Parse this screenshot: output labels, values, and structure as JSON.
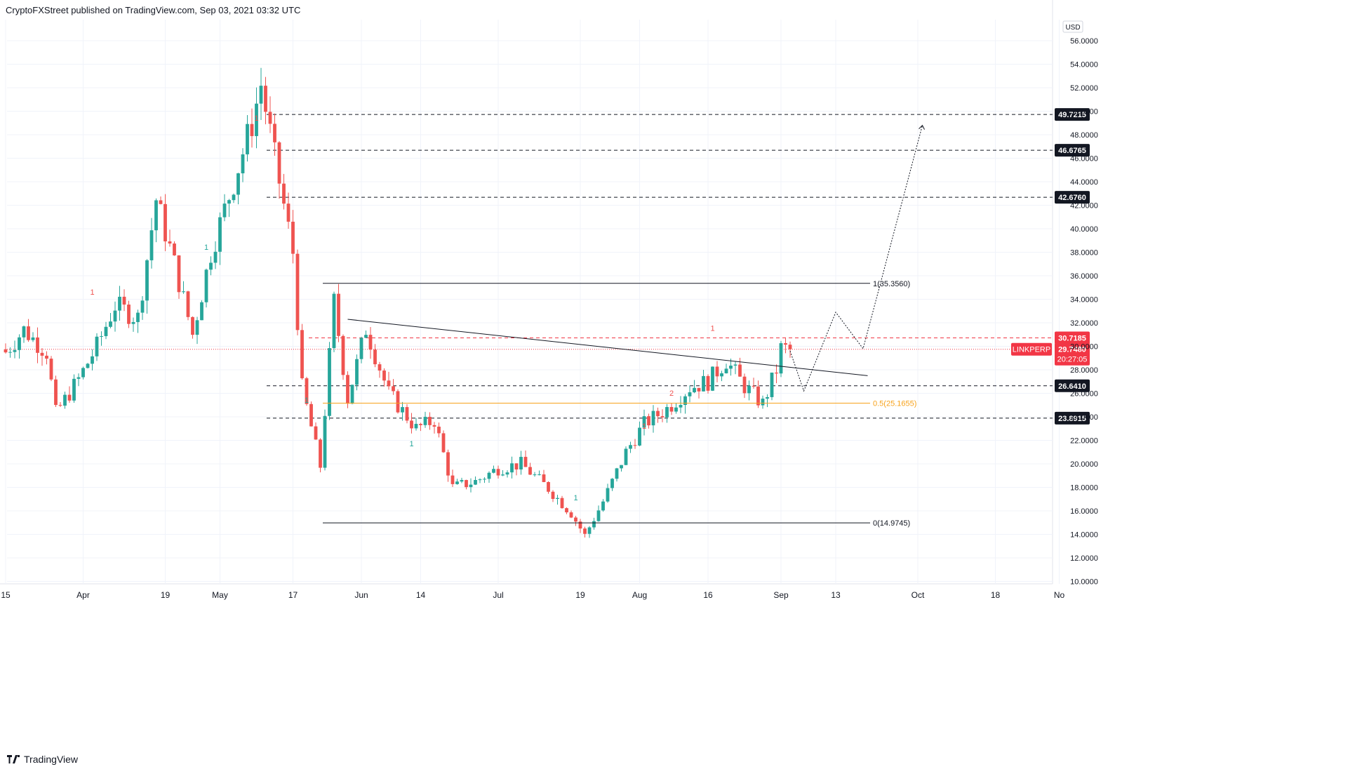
{
  "header": {
    "publisher_line": "CryptoFXStreet published on TradingView.com, Sep 03, 2021 03:32 UTC"
  },
  "footer": {
    "brand": "TradingView"
  },
  "colors": {
    "up": "#26a69a",
    "down": "#ef5350",
    "fib_mid": "#f7a21b",
    "last_price_bg": "#f23645",
    "dark_label_bg": "#131722",
    "grid": "#f0f3fa"
  },
  "chart_data": {
    "type": "candlestick",
    "symbol": "LINKPERP",
    "currency": "USD",
    "y_ticks": [
      "56.0000",
      "54.0000",
      "52.0000",
      "50.0000",
      "48.0000",
      "46.0000",
      "44.0000",
      "42.0000",
      "40.0000",
      "38.0000",
      "36.0000",
      "34.0000",
      "32.0000",
      "30.0000",
      "28.0000",
      "26.0000",
      "24.0000",
      "22.0000",
      "20.0000",
      "18.0000",
      "16.0000",
      "14.0000",
      "12.0000",
      "10.0000"
    ],
    "y_tick_values": [
      56,
      54,
      52,
      50,
      48,
      46,
      44,
      42,
      40,
      38,
      36,
      34,
      32,
      30,
      28,
      26,
      24,
      22,
      20,
      18,
      16,
      14,
      12,
      10
    ],
    "x_ticks": [
      {
        "label": "15",
        "date": "2021-03-15"
      },
      {
        "label": "Apr",
        "date": "2021-04-01"
      },
      {
        "label": "19",
        "date": "2021-04-19"
      },
      {
        "label": "May",
        "date": "2021-05-01"
      },
      {
        "label": "17",
        "date": "2021-05-17"
      },
      {
        "label": "Jun",
        "date": "2021-06-01"
      },
      {
        "label": "14",
        "date": "2021-06-14"
      },
      {
        "label": "Jul",
        "date": "2021-07-01"
      },
      {
        "label": "19",
        "date": "2021-07-19"
      },
      {
        "label": "Aug",
        "date": "2021-08-01"
      },
      {
        "label": "16",
        "date": "2021-08-16"
      },
      {
        "label": "Sep",
        "date": "2021-09-01"
      },
      {
        "label": "13",
        "date": "2021-09-13"
      },
      {
        "label": "Oct",
        "date": "2021-10-01"
      },
      {
        "label": "18",
        "date": "2021-10-18"
      },
      {
        "label": "No",
        "date": "2021-11-01"
      }
    ],
    "closes": [
      {
        "date": "2021-03-15",
        "value": 29.5
      },
      {
        "date": "2021-03-19",
        "value": 31.4
      },
      {
        "date": "2021-03-24",
        "value": 29.5
      },
      {
        "date": "2021-03-26",
        "value": 24.3
      },
      {
        "date": "2021-03-31",
        "value": 27.2
      },
      {
        "date": "2021-04-04",
        "value": 30.0
      },
      {
        "date": "2021-04-08",
        "value": 33.5
      },
      {
        "date": "2021-04-13",
        "value": 32.4
      },
      {
        "date": "2021-04-17",
        "value": 42.5
      },
      {
        "date": "2021-04-21",
        "value": 37.0
      },
      {
        "date": "2021-04-25",
        "value": 31.0
      },
      {
        "date": "2021-04-29",
        "value": 38.0
      },
      {
        "date": "2021-05-04",
        "value": 44.0
      },
      {
        "date": "2021-05-08",
        "value": 49.0
      },
      {
        "date": "2021-05-10",
        "value": 52.3
      },
      {
        "date": "2021-05-13",
        "value": 46.0
      },
      {
        "date": "2021-05-17",
        "value": 38.0
      },
      {
        "date": "2021-05-19",
        "value": 26.5
      },
      {
        "date": "2021-05-23",
        "value": 19.8
      },
      {
        "date": "2021-05-26",
        "value": 33.8
      },
      {
        "date": "2021-05-29",
        "value": 25.5
      },
      {
        "date": "2021-06-02",
        "value": 31.5
      },
      {
        "date": "2021-06-07",
        "value": 26.0
      },
      {
        "date": "2021-06-13",
        "value": 23.0
      },
      {
        "date": "2021-06-17",
        "value": 23.7
      },
      {
        "date": "2021-06-21",
        "value": 18.0
      },
      {
        "date": "2021-06-26",
        "value": 18.5
      },
      {
        "date": "2021-07-01",
        "value": 19.6
      },
      {
        "date": "2021-07-06",
        "value": 20.0
      },
      {
        "date": "2021-07-12",
        "value": 17.9
      },
      {
        "date": "2021-07-17",
        "value": 15.8
      },
      {
        "date": "2021-07-20",
        "value": 13.9
      },
      {
        "date": "2021-07-24",
        "value": 16.8
      },
      {
        "date": "2021-07-29",
        "value": 21.0
      },
      {
        "date": "2021-08-02",
        "value": 23.4
      },
      {
        "date": "2021-08-07",
        "value": 24.7
      },
      {
        "date": "2021-08-12",
        "value": 26.5
      },
      {
        "date": "2021-08-16",
        "value": 27.0
      },
      {
        "date": "2021-08-20",
        "value": 28.8
      },
      {
        "date": "2021-08-24",
        "value": 26.6
      },
      {
        "date": "2021-08-28",
        "value": 25.1
      },
      {
        "date": "2021-08-31",
        "value": 28.0
      },
      {
        "date": "2021-09-01",
        "value": 29.8
      },
      {
        "date": "2021-09-03",
        "value": 29.748
      }
    ],
    "horizontal_levels": [
      {
        "value": 49.7215,
        "label": "49.7215",
        "style": "dashed"
      },
      {
        "value": 46.6765,
        "label": "46.6765",
        "style": "dashed"
      },
      {
        "value": 42.676,
        "label": "42.6760",
        "style": "dashed"
      },
      {
        "value": 30.7185,
        "label": "30.7185",
        "style": "dashed-red"
      },
      {
        "value": 26.641,
        "label": "26.6410",
        "style": "dashed"
      },
      {
        "value": 23.8915,
        "label": "23.8915",
        "style": "dashed"
      }
    ],
    "fibonacci": [
      {
        "level": "1",
        "value": 35.356,
        "label": "1(35.3560)"
      },
      {
        "level": "0.5",
        "value": 25.1655,
        "label": "0.5(25.1655)"
      },
      {
        "level": "0",
        "value": 14.9745,
        "label": "0(14.9745)"
      }
    ],
    "trendline": {
      "start": {
        "date": "2021-05-29",
        "value": 32.3
      },
      "end": {
        "date": "2021-09-20",
        "value": 27.5
      }
    },
    "projection_path": [
      {
        "date": "2021-09-03",
        "value": 29.6
      },
      {
        "date": "2021-09-06",
        "value": 26.2
      },
      {
        "date": "2021-09-13",
        "value": 32.9
      },
      {
        "date": "2021-09-19",
        "value": 29.8
      },
      {
        "date": "2021-10-02",
        "value": 48.8
      }
    ],
    "last_price": {
      "symbol": "LINKPERP",
      "value": "29.7480",
      "countdown": "20:27:05"
    },
    "markers": [
      "1",
      "1",
      "1",
      "1",
      "1",
      "1",
      "2",
      "1",
      "1"
    ],
    "ylim": [
      10,
      57
    ]
  }
}
